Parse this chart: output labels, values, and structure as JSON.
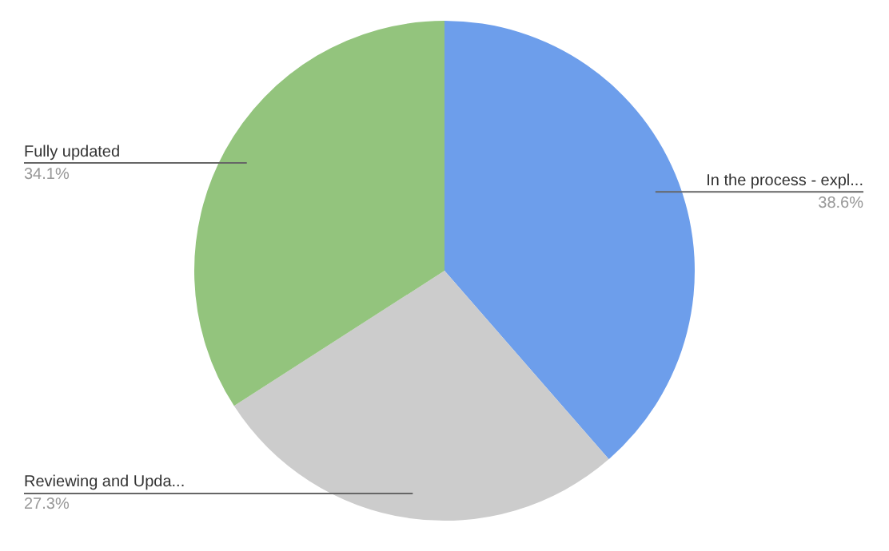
{
  "chart_data": {
    "type": "pie",
    "categories": [
      "In the process - expl...",
      "Reviewing and Upda...",
      "Fully updated"
    ],
    "values": [
      38.6,
      27.3,
      34.1
    ],
    "colors": [
      "#6d9eeb",
      "#cccccc",
      "#93c47d"
    ],
    "value_labels": [
      "38.6%",
      "27.3%",
      "34.1%"
    ],
    "legend": false
  }
}
